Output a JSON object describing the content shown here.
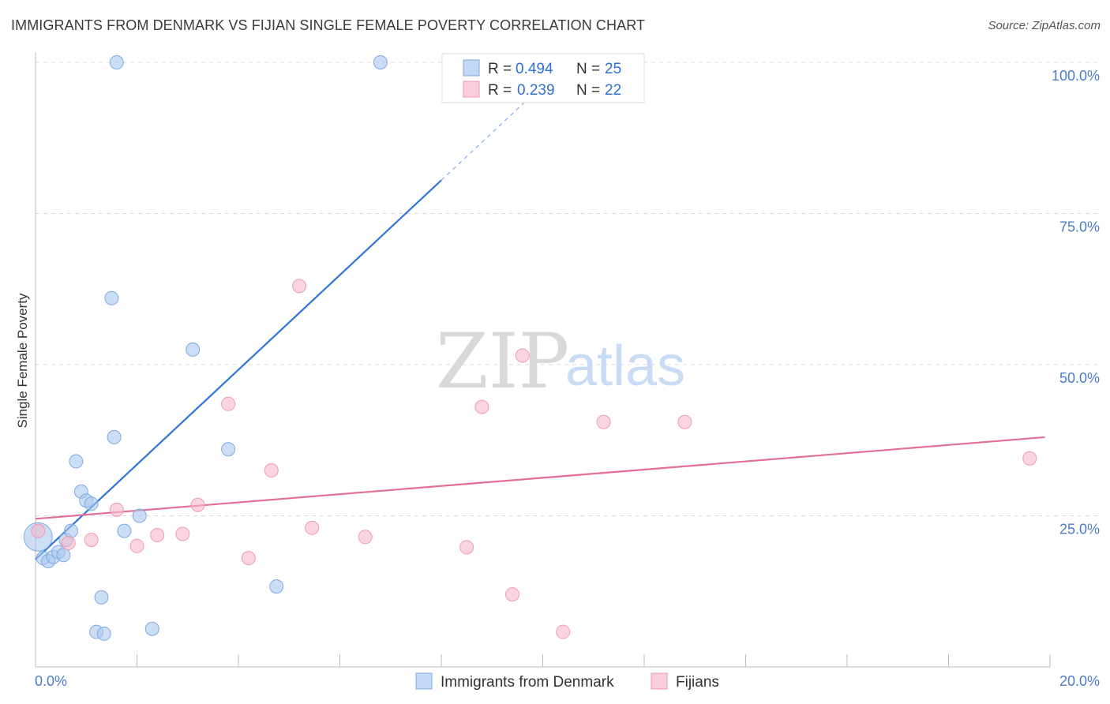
{
  "header": {
    "title": "IMMIGRANTS FROM DENMARK VS FIJIAN SINGLE FEMALE POVERTY CORRELATION CHART",
    "source": "Source: ZipAtlas.com"
  },
  "watermark": {
    "zip": "ZIP",
    "atlas": "atlas"
  },
  "chart_data": {
    "type": "scatter",
    "title": "IMMIGRANTS FROM DENMARK VS FIJIAN SINGLE FEMALE POVERTY CORRELATION CHART",
    "xlabel": "",
    "ylabel": "Single Female Poverty",
    "xlim": [
      0,
      20
    ],
    "ylim": [
      0,
      100
    ],
    "x_tick_labels": [
      "0.0%",
      "20.0%"
    ],
    "y_ticks": [
      25,
      50,
      75,
      100
    ],
    "y_tick_labels": [
      "25.0%",
      "50.0%",
      "75.0%",
      "100.0%"
    ],
    "legend": [
      {
        "name": "Immigrants from Denmark",
        "r_label": "R = ",
        "r": "0.494",
        "n_label": "N = ",
        "n": "25",
        "color": "#a8c8f0",
        "stroke": "#7fa9e0"
      },
      {
        "name": "Fijians",
        "r_label": "R = ",
        "r": "0.239",
        "n_label": "N = ",
        "n": "22",
        "color": "#f7b9cb",
        "stroke": "#ee9ab3"
      }
    ],
    "series": [
      {
        "name": "Immigrants from Denmark",
        "color": "#a8c8f0",
        "line_color": "#2f74d6",
        "trend": {
          "x0": 0,
          "y0": 17.8,
          "x1": 8.0,
          "y1": 80.5,
          "dash_to_x": 10.1,
          "dash_to_y": 97
        },
        "points": [
          {
            "x": 0.05,
            "y": 21.5,
            "big": true
          },
          {
            "x": 0.15,
            "y": 18.0
          },
          {
            "x": 0.25,
            "y": 17.5
          },
          {
            "x": 0.35,
            "y": 18.2
          },
          {
            "x": 0.45,
            "y": 19.0
          },
          {
            "x": 0.55,
            "y": 18.5
          },
          {
            "x": 0.6,
            "y": 21.0
          },
          {
            "x": 0.7,
            "y": 22.5
          },
          {
            "x": 0.8,
            "y": 34.0
          },
          {
            "x": 0.9,
            "y": 29.0
          },
          {
            "x": 1.0,
            "y": 27.5
          },
          {
            "x": 1.1,
            "y": 27.0
          },
          {
            "x": 1.3,
            "y": 11.5
          },
          {
            "x": 1.2,
            "y": 5.8
          },
          {
            "x": 1.35,
            "y": 5.5
          },
          {
            "x": 1.5,
            "y": 61.0
          },
          {
            "x": 1.55,
            "y": 38.0
          },
          {
            "x": 1.6,
            "y": 100.0
          },
          {
            "x": 1.75,
            "y": 22.5
          },
          {
            "x": 2.05,
            "y": 25.0
          },
          {
            "x": 2.3,
            "y": 6.3
          },
          {
            "x": 3.1,
            "y": 52.5
          },
          {
            "x": 3.8,
            "y": 36.0
          },
          {
            "x": 4.75,
            "y": 13.3
          },
          {
            "x": 6.8,
            "y": 100.0
          }
        ]
      },
      {
        "name": "Fijians",
        "color": "#f7b9cb",
        "line_color": "#e36f98",
        "trend": {
          "x0": 0,
          "y0": 24.5,
          "x1": 19.9,
          "y1": 38.0
        },
        "points": [
          {
            "x": 0.05,
            "y": 22.5
          },
          {
            "x": 0.65,
            "y": 20.5
          },
          {
            "x": 1.1,
            "y": 21.0
          },
          {
            "x": 1.6,
            "y": 26.0
          },
          {
            "x": 2.0,
            "y": 20.0
          },
          {
            "x": 2.4,
            "y": 21.8
          },
          {
            "x": 2.9,
            "y": 22.0
          },
          {
            "x": 3.2,
            "y": 26.8
          },
          {
            "x": 3.8,
            "y": 43.5
          },
          {
            "x": 4.2,
            "y": 18.0
          },
          {
            "x": 4.65,
            "y": 32.5
          },
          {
            "x": 5.2,
            "y": 63.0
          },
          {
            "x": 5.45,
            "y": 23.0
          },
          {
            "x": 6.5,
            "y": 21.5
          },
          {
            "x": 8.5,
            "y": 19.8
          },
          {
            "x": 8.8,
            "y": 43.0
          },
          {
            "x": 9.4,
            "y": 12.0
          },
          {
            "x": 9.6,
            "y": 51.5
          },
          {
            "x": 10.4,
            "y": 5.8
          },
          {
            "x": 11.2,
            "y": 40.5
          },
          {
            "x": 12.8,
            "y": 40.5
          },
          {
            "x": 19.6,
            "y": 34.5
          }
        ]
      }
    ]
  }
}
